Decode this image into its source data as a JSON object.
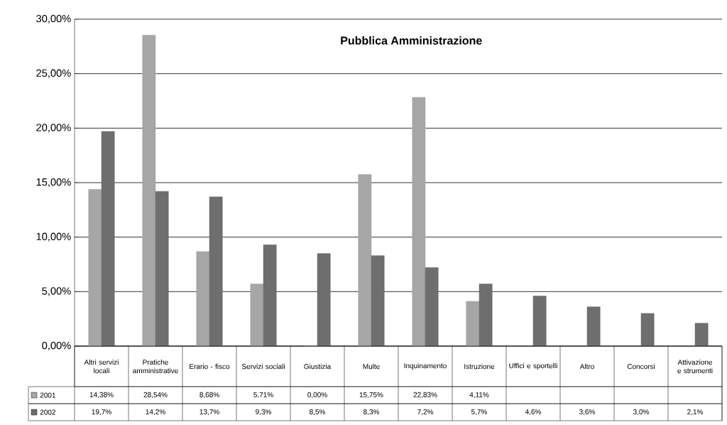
{
  "chart_data": {
    "type": "bar",
    "title": "Pubblica Amministrazione",
    "categories": [
      "Altri servizi locali",
      "Pratiche amministrative",
      "Erario - fisco",
      "Servizi sociali",
      "Giustizia",
      "Multe",
      "Inquinamento",
      "Istruzione",
      "Uffici e sportelli",
      "Altro",
      "Concorsi",
      "Attivazione e strumenti"
    ],
    "series": [
      {
        "name": "2001",
        "color": "#a6a6a6",
        "values": [
          14.38,
          28.54,
          8.68,
          5.71,
          0.0,
          15.75,
          22.83,
          4.11,
          null,
          null,
          null,
          null
        ],
        "value_labels": [
          "14,38%",
          "28,54%",
          "8,68%",
          "5,71%",
          "0,00%",
          "15,75%",
          "22,83%",
          "4,11%",
          null,
          null,
          null,
          null
        ]
      },
      {
        "name": "2002",
        "color": "#6e6e6e",
        "values": [
          19.7,
          14.2,
          13.7,
          9.3,
          8.5,
          8.3,
          7.2,
          5.7,
          4.6,
          3.6,
          3.0,
          2.1
        ],
        "value_labels": [
          "19,7%",
          "14,2%",
          "13,7%",
          "9,3%",
          "8,5%",
          "8,3%",
          "7,2%",
          "5,7%",
          "4,6%",
          "3,6%",
          "3,0%",
          "2,1%"
        ]
      }
    ],
    "ylim": [
      0,
      30
    ],
    "yticks": [
      {
        "value": 0,
        "label": "0,00%"
      },
      {
        "value": 5,
        "label": "5,00%"
      },
      {
        "value": 10,
        "label": "10,00%"
      },
      {
        "value": 15,
        "label": "15,00%"
      },
      {
        "value": 20,
        "label": "20,00%"
      },
      {
        "value": 25,
        "label": "25,00%"
      },
      {
        "value": 30,
        "label": "30,00%"
      }
    ],
    "grid": "y",
    "legend": "bottom left"
  }
}
